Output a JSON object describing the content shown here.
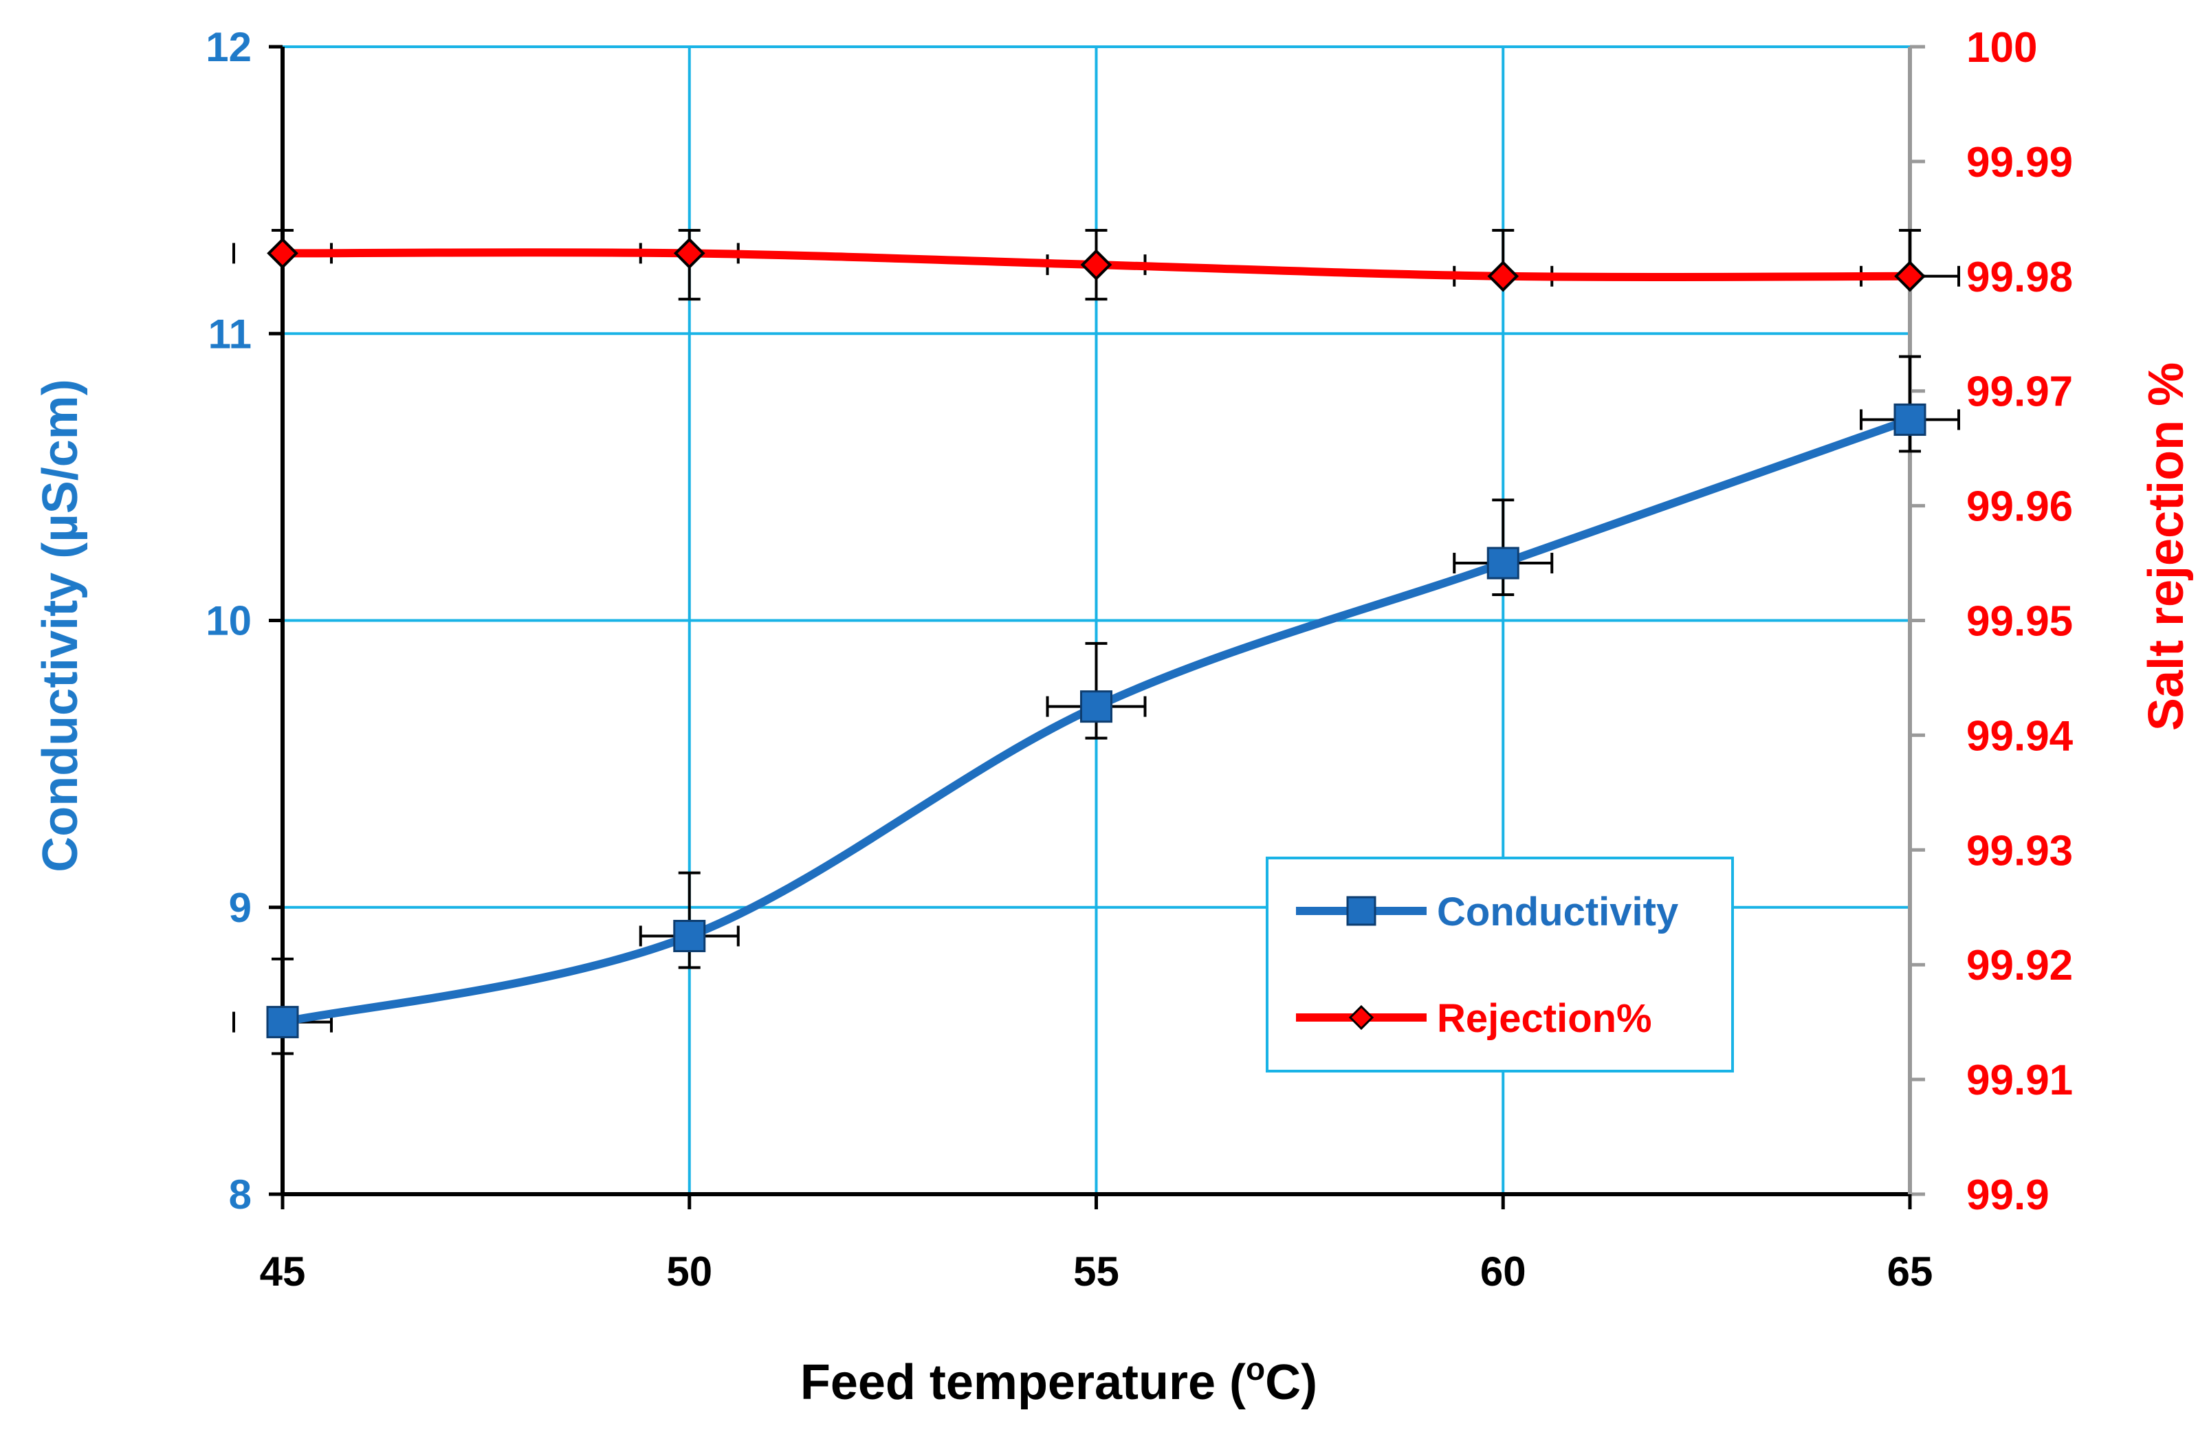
{
  "chart_data": {
    "type": "line",
    "x": [
      45,
      50,
      55,
      60,
      65
    ],
    "xlabel": "Feed temperature (°C)",
    "xlabel_prefix": "Feed temperature (",
    "xlabel_sup": "o",
    "xlabel_suffix": "C)",
    "xlim": [
      45,
      65
    ],
    "xticks": [
      45,
      50,
      55,
      60,
      65
    ],
    "ylabel_left": "Conductivity (µS/cm)",
    "ylim_left": [
      8,
      12
    ],
    "yticks_left": [
      8,
      9,
      10,
      11,
      12
    ],
    "ylabel_right": "Salt rejection %",
    "ylim_right": [
      99.9,
      100
    ],
    "yticks_right": [
      "99.9",
      "99.91",
      "99.92",
      "99.93",
      "99.94",
      "99.95",
      "99.96",
      "99.97",
      "99.98",
      "99.99",
      "100"
    ],
    "grid": true,
    "legend_position": "lower-right",
    "series": [
      {
        "name": "Conductivity",
        "axis": "left",
        "color": "#1f6fbf",
        "marker": "square",
        "values": [
          8.6,
          8.9,
          9.7,
          10.2,
          10.7
        ],
        "y_error_up": [
          0.22,
          0.22,
          0.22,
          0.22,
          0.22
        ],
        "y_error_down": [
          0.11,
          0.11,
          0.11,
          0.11,
          0.11
        ],
        "x_error": [
          0.6,
          0.6,
          0.6,
          0.6,
          0.6
        ]
      },
      {
        "name": "Rejection%",
        "axis": "right",
        "color": "#ff0000",
        "marker": "diamond",
        "values": [
          99.982,
          99.982,
          99.981,
          99.98,
          99.98
        ],
        "y_error_up": [
          0.002,
          0.002,
          0.003,
          0.004,
          0.004
        ],
        "y_error_down": [
          0.0,
          0.004,
          0.003,
          0.0,
          0.0
        ],
        "x_error": [
          0.6,
          0.6,
          0.6,
          0.6,
          0.6
        ]
      }
    ]
  }
}
